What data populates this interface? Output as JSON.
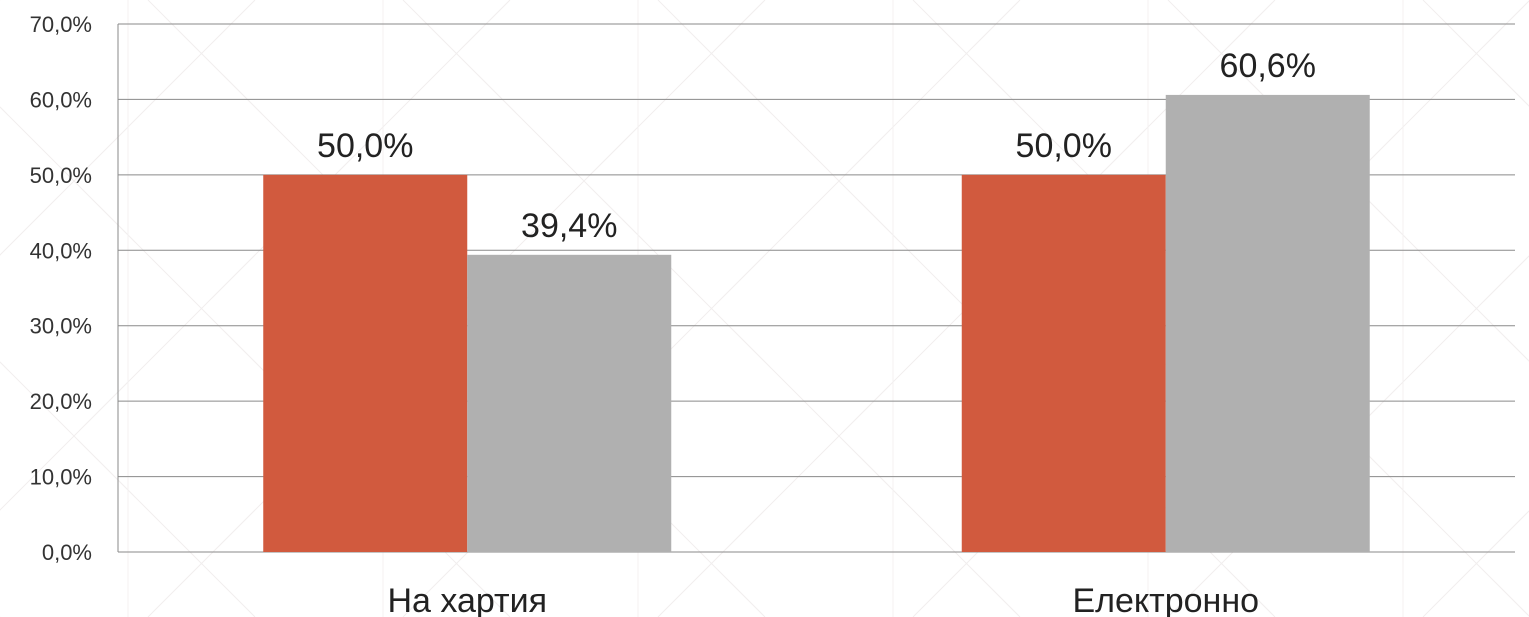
{
  "chart_data": {
    "type": "bar",
    "categories": [
      "На хартия",
      "Електронно"
    ],
    "series": [
      {
        "values": [
          50.0,
          50.0
        ],
        "labels": [
          "50,0%",
          "50,0%"
        ],
        "color": "#d15a3e"
      },
      {
        "values": [
          39.4,
          60.6
        ],
        "labels": [
          "39,4%",
          "60,6%"
        ],
        "color": "#b0b0b0"
      }
    ],
    "yticks": [
      "0,0%",
      "10,0%",
      "20,0%",
      "30,0%",
      "40,0%",
      "50,0%",
      "60,0%",
      "70,0%"
    ],
    "ylim": [
      0,
      70
    ],
    "grid": true,
    "legend": "none"
  }
}
